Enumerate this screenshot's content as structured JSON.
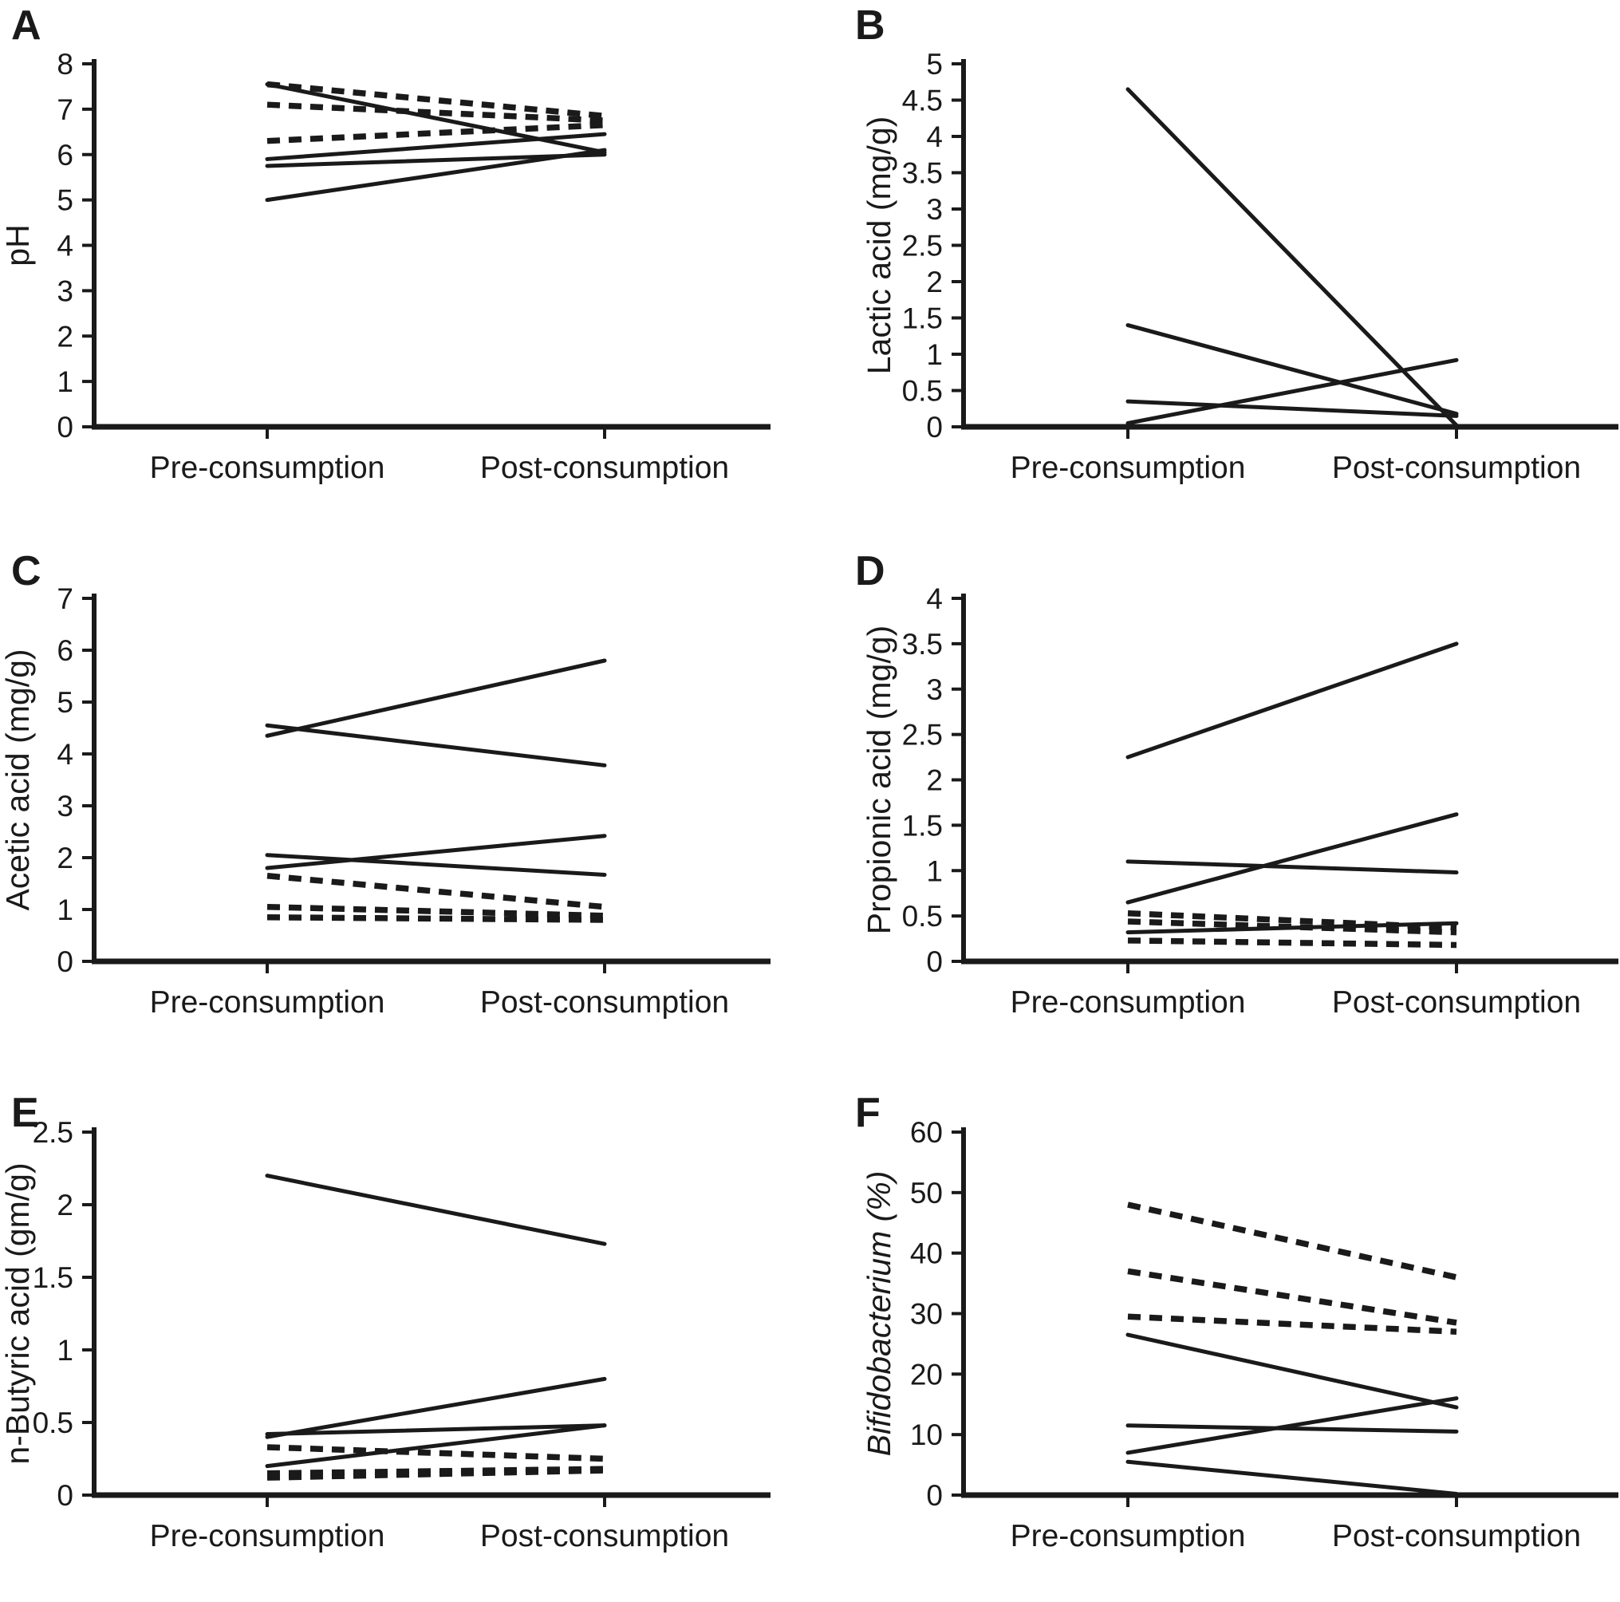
{
  "figure": {
    "background": "#ffffff",
    "axis_color": "#1a1a1a",
    "line_color": "#1a1a1a",
    "x_categories": [
      "Pre-consumption",
      "Post-consumption"
    ],
    "legend": "none",
    "grid": false
  },
  "chart_data": [
    {
      "panel": "A",
      "type": "line",
      "subtype": "paired-slopegraph",
      "ylabel": "pH",
      "ylabel_parts": [
        {
          "text": "pH",
          "italic": false
        }
      ],
      "xlabel": "",
      "ylim": [
        0,
        8
      ],
      "yticks": [
        8,
        7,
        6,
        5,
        4,
        3,
        2,
        1,
        0
      ],
      "ytick_labels": [
        "8",
        "7",
        "6",
        "5",
        "4",
        "3",
        "2",
        "1",
        "0"
      ],
      "categories": [
        "Pre-consumption",
        "Post-consumption"
      ],
      "series": [
        {
          "name": "subject-solid-1",
          "style": "solid",
          "values": [
            7.55,
            6.05
          ]
        },
        {
          "name": "subject-solid-2",
          "style": "solid",
          "values": [
            5.9,
            6.45
          ]
        },
        {
          "name": "subject-solid-3",
          "style": "solid",
          "values": [
            5.75,
            6.0
          ]
        },
        {
          "name": "subject-solid-4",
          "style": "solid",
          "values": [
            5.0,
            6.1
          ]
        },
        {
          "name": "subject-dashed-1",
          "style": "dashed",
          "values": [
            7.55,
            6.85
          ]
        },
        {
          "name": "subject-dashed-2",
          "style": "dashed",
          "values": [
            7.1,
            6.75
          ]
        },
        {
          "name": "subject-dashed-3",
          "style": "dashed",
          "values": [
            6.3,
            6.65
          ]
        }
      ]
    },
    {
      "panel": "B",
      "type": "line",
      "subtype": "paired-slopegraph",
      "ylabel": "Lactic acid (mg/g)",
      "ylabel_parts": [
        {
          "text": "Lactic acid (mg/g)",
          "italic": false
        }
      ],
      "xlabel": "",
      "ylim": [
        0,
        5
      ],
      "yticks": [
        5,
        4.5,
        4,
        3.5,
        3,
        2.5,
        2,
        1.5,
        1,
        0.5,
        0
      ],
      "ytick_labels": [
        "5",
        "4.5",
        "4",
        "3.5",
        "3",
        "2.5",
        "2",
        "1.5",
        "1",
        "0.5",
        "0"
      ],
      "categories": [
        "Pre-consumption",
        "Post-consumption"
      ],
      "series": [
        {
          "name": "subject-solid-1",
          "style": "solid",
          "values": [
            4.65,
            0.02
          ]
        },
        {
          "name": "subject-solid-2",
          "style": "solid",
          "values": [
            1.4,
            0.18
          ]
        },
        {
          "name": "subject-solid-3",
          "style": "solid",
          "values": [
            0.35,
            0.15
          ]
        },
        {
          "name": "subject-solid-4",
          "style": "solid",
          "values": [
            0.05,
            0.92
          ]
        }
      ]
    },
    {
      "panel": "C",
      "type": "line",
      "subtype": "paired-slopegraph",
      "ylabel": "Acetic acid (mg/g)",
      "ylabel_parts": [
        {
          "text": "Acetic acid (mg/g)",
          "italic": false
        }
      ],
      "xlabel": "",
      "ylim": [
        0,
        7
      ],
      "yticks": [
        7,
        6,
        5,
        4,
        3,
        2,
        1,
        0
      ],
      "ytick_labels": [
        "7",
        "6",
        "5",
        "4",
        "3",
        "2",
        "1",
        "0"
      ],
      "categories": [
        "Pre-consumption",
        "Post-consumption"
      ],
      "series": [
        {
          "name": "subject-solid-1",
          "style": "solid",
          "values": [
            4.35,
            5.8
          ]
        },
        {
          "name": "subject-solid-2",
          "style": "solid",
          "values": [
            4.55,
            3.78
          ]
        },
        {
          "name": "subject-solid-3",
          "style": "solid",
          "values": [
            2.05,
            1.67
          ]
        },
        {
          "name": "subject-solid-4",
          "style": "solid",
          "values": [
            1.8,
            2.42
          ]
        },
        {
          "name": "subject-dashed-1",
          "style": "dashed",
          "values": [
            1.65,
            1.05
          ]
        },
        {
          "name": "subject-dashed-2",
          "style": "dashed",
          "values": [
            1.05,
            0.88
          ]
        },
        {
          "name": "subject-dashed-3",
          "style": "dashed",
          "values": [
            0.85,
            0.8
          ]
        }
      ]
    },
    {
      "panel": "D",
      "type": "line",
      "subtype": "paired-slopegraph",
      "ylabel": "Propionic acid (mg/g)",
      "ylabel_parts": [
        {
          "text": "Propionic acid (mg/g)",
          "italic": false
        }
      ],
      "xlabel": "",
      "ylim": [
        0,
        4
      ],
      "yticks": [
        4,
        3.5,
        3,
        2.5,
        2,
        1.5,
        1,
        0.5,
        0
      ],
      "ytick_labels": [
        "4",
        "3.5",
        "3",
        "2.5",
        "2",
        "1.5",
        "1",
        "0.5",
        "0"
      ],
      "categories": [
        "Pre-consumption",
        "Post-consumption"
      ],
      "series": [
        {
          "name": "subject-solid-1",
          "style": "solid",
          "values": [
            2.25,
            3.5
          ]
        },
        {
          "name": "subject-solid-2",
          "style": "solid",
          "values": [
            1.1,
            0.98
          ]
        },
        {
          "name": "subject-solid-3",
          "style": "solid",
          "values": [
            0.65,
            1.62
          ]
        },
        {
          "name": "subject-solid-4",
          "style": "solid",
          "values": [
            0.32,
            0.42
          ]
        },
        {
          "name": "subject-dashed-1",
          "style": "dashed",
          "values": [
            0.53,
            0.37
          ]
        },
        {
          "name": "subject-dashed-2",
          "style": "dashed",
          "values": [
            0.44,
            0.32
          ]
        },
        {
          "name": "subject-dashed-3",
          "style": "dashed",
          "values": [
            0.23,
            0.18
          ]
        }
      ]
    },
    {
      "panel": "E",
      "type": "line",
      "subtype": "paired-slopegraph",
      "ylabel": "n-Butyric acid (gm/g)",
      "ylabel_parts": [
        {
          "text": "n-Butyric acid (gm/g)",
          "italic": false
        }
      ],
      "xlabel": "",
      "ylim": [
        0,
        2.5
      ],
      "yticks": [
        2.5,
        2,
        1.5,
        1,
        0.5,
        0
      ],
      "ytick_labels": [
        "2.5",
        "2",
        "1.5",
        "1",
        "0.5",
        "0"
      ],
      "categories": [
        "Pre-consumption",
        "Post-consumption"
      ],
      "series": [
        {
          "name": "subject-solid-1",
          "style": "solid",
          "values": [
            2.2,
            1.73
          ]
        },
        {
          "name": "subject-solid-2",
          "style": "solid",
          "values": [
            0.42,
            0.48
          ]
        },
        {
          "name": "subject-solid-3",
          "style": "solid",
          "values": [
            0.4,
            0.8
          ]
        },
        {
          "name": "subject-solid-4",
          "style": "solid",
          "values": [
            0.2,
            0.48
          ]
        },
        {
          "name": "subject-dashed-1",
          "style": "dashed",
          "values": [
            0.33,
            0.25
          ]
        },
        {
          "name": "subject-dashed-2",
          "style": "dashed",
          "values": [
            0.15,
            0.18
          ]
        },
        {
          "name": "subject-dashed-3",
          "style": "dashed",
          "values": [
            0.12,
            0.17
          ]
        }
      ]
    },
    {
      "panel": "F",
      "type": "line",
      "subtype": "paired-slopegraph",
      "ylabel": "Bifidobacterium (%)",
      "ylabel_parts": [
        {
          "text": "Bifidobacterium (%)",
          "italic": true
        }
      ],
      "xlabel": "",
      "ylim": [
        0,
        60
      ],
      "yticks": [
        60,
        50,
        40,
        30,
        20,
        10,
        0
      ],
      "ytick_labels": [
        "60",
        "50",
        "40",
        "30",
        "20",
        "10",
        "0"
      ],
      "categories": [
        "Pre-consumption",
        "Post-consumption"
      ],
      "series": [
        {
          "name": "subject-dashed-1",
          "style": "dashed",
          "values": [
            48,
            36
          ]
        },
        {
          "name": "subject-dashed-2",
          "style": "dashed",
          "values": [
            37,
            28.5
          ]
        },
        {
          "name": "subject-dashed-3",
          "style": "dashed",
          "values": [
            29.5,
            27
          ]
        },
        {
          "name": "subject-solid-1",
          "style": "solid",
          "values": [
            26.5,
            14.5
          ]
        },
        {
          "name": "subject-solid-2",
          "style": "solid",
          "values": [
            11.5,
            10.5
          ]
        },
        {
          "name": "subject-solid-3",
          "style": "solid",
          "values": [
            7,
            16
          ]
        },
        {
          "name": "subject-solid-4",
          "style": "solid",
          "values": [
            5.5,
            0.2
          ]
        }
      ]
    }
  ]
}
